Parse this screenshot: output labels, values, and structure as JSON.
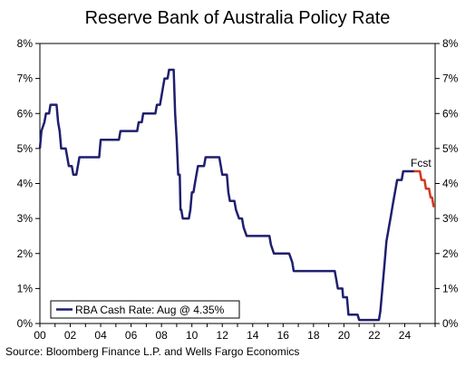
{
  "chart_data": {
    "type": "line",
    "title": "Reserve Bank of Australia Policy Rate",
    "source": "Source: Bloomberg Finance L.P. and Wells Fargo Economics",
    "xlim": [
      2000,
      2026
    ],
    "ylim": [
      0,
      8
    ],
    "x_tick_labels": [
      "00",
      "02",
      "04",
      "06",
      "08",
      "10",
      "12",
      "14",
      "16",
      "18",
      "20",
      "22",
      "24"
    ],
    "x_tick_values": [
      2000,
      2002,
      2004,
      2006,
      2008,
      2010,
      2012,
      2014,
      2016,
      2018,
      2020,
      2022,
      2024
    ],
    "y_tick_labels": [
      "0%",
      "1%",
      "2%",
      "3%",
      "4%",
      "5%",
      "6%",
      "7%",
      "8%"
    ],
    "y_tick_values": [
      0,
      1,
      2,
      3,
      4,
      5,
      6,
      7,
      8
    ],
    "grid": false,
    "legend_placement": "bottom-left",
    "annotation": "Fcst",
    "series": [
      {
        "name": "RBA Cash Rate: Aug @ 4.35%",
        "color": "#1f1f6e",
        "points": [
          [
            2000.0,
            5.0
          ],
          [
            2000.1,
            5.5
          ],
          [
            2000.3,
            5.75
          ],
          [
            2000.4,
            6.0
          ],
          [
            2000.6,
            6.0
          ],
          [
            2000.7,
            6.25
          ],
          [
            2001.1,
            6.25
          ],
          [
            2001.2,
            5.75
          ],
          [
            2001.3,
            5.5
          ],
          [
            2001.4,
            5.0
          ],
          [
            2001.7,
            5.0
          ],
          [
            2001.8,
            4.75
          ],
          [
            2001.9,
            4.5
          ],
          [
            2002.1,
            4.5
          ],
          [
            2002.2,
            4.25
          ],
          [
            2002.4,
            4.25
          ],
          [
            2002.5,
            4.5
          ],
          [
            2002.6,
            4.75
          ],
          [
            2003.9,
            4.75
          ],
          [
            2004.0,
            5.25
          ],
          [
            2005.2,
            5.25
          ],
          [
            2005.3,
            5.5
          ],
          [
            2006.4,
            5.5
          ],
          [
            2006.5,
            5.75
          ],
          [
            2006.7,
            5.75
          ],
          [
            2006.8,
            6.0
          ],
          [
            2007.6,
            6.0
          ],
          [
            2007.7,
            6.25
          ],
          [
            2007.9,
            6.25
          ],
          [
            2008.0,
            6.5
          ],
          [
            2008.1,
            6.75
          ],
          [
            2008.2,
            7.0
          ],
          [
            2008.4,
            7.0
          ],
          [
            2008.5,
            7.25
          ],
          [
            2008.7,
            7.25
          ],
          [
            2008.8,
            7.25
          ],
          [
            2008.9,
            6.0
          ],
          [
            2009.0,
            5.25
          ],
          [
            2009.1,
            4.25
          ],
          [
            2009.2,
            4.25
          ],
          [
            2009.25,
            3.25
          ],
          [
            2009.3,
            3.25
          ],
          [
            2009.4,
            3.0
          ],
          [
            2009.8,
            3.0
          ],
          [
            2009.9,
            3.25
          ],
          [
            2010.0,
            3.75
          ],
          [
            2010.1,
            3.75
          ],
          [
            2010.2,
            4.0
          ],
          [
            2010.3,
            4.25
          ],
          [
            2010.4,
            4.5
          ],
          [
            2010.8,
            4.5
          ],
          [
            2010.9,
            4.75
          ],
          [
            2011.8,
            4.75
          ],
          [
            2011.9,
            4.5
          ],
          [
            2012.0,
            4.25
          ],
          [
            2012.3,
            4.25
          ],
          [
            2012.4,
            3.75
          ],
          [
            2012.5,
            3.5
          ],
          [
            2012.8,
            3.5
          ],
          [
            2012.9,
            3.25
          ],
          [
            2013.1,
            3.0
          ],
          [
            2013.3,
            3.0
          ],
          [
            2013.4,
            2.75
          ],
          [
            2013.6,
            2.5
          ],
          [
            2015.1,
            2.5
          ],
          [
            2015.2,
            2.25
          ],
          [
            2015.4,
            2.0
          ],
          [
            2016.4,
            2.0
          ],
          [
            2016.6,
            1.75
          ],
          [
            2016.7,
            1.5
          ],
          [
            2019.4,
            1.5
          ],
          [
            2019.5,
            1.25
          ],
          [
            2019.6,
            1.0
          ],
          [
            2019.9,
            1.0
          ],
          [
            2019.95,
            0.75
          ],
          [
            2020.2,
            0.75
          ],
          [
            2020.25,
            0.5
          ],
          [
            2020.3,
            0.25
          ],
          [
            2020.9,
            0.25
          ],
          [
            2021.0,
            0.1
          ],
          [
            2022.3,
            0.1
          ],
          [
            2022.4,
            0.35
          ],
          [
            2022.5,
            0.85
          ],
          [
            2022.6,
            1.35
          ],
          [
            2022.7,
            1.85
          ],
          [
            2022.8,
            2.35
          ],
          [
            2022.9,
            2.6
          ],
          [
            2023.0,
            2.85
          ],
          [
            2023.1,
            3.1
          ],
          [
            2023.2,
            3.35
          ],
          [
            2023.3,
            3.6
          ],
          [
            2023.4,
            3.85
          ],
          [
            2023.5,
            4.1
          ],
          [
            2023.8,
            4.1
          ],
          [
            2023.9,
            4.35
          ],
          [
            2024.6,
            4.35
          ]
        ]
      },
      {
        "name": "Forecast",
        "color": "#d2371e",
        "points": [
          [
            2024.6,
            4.35
          ],
          [
            2025.0,
            4.35
          ],
          [
            2025.1,
            4.1
          ],
          [
            2025.3,
            4.1
          ],
          [
            2025.4,
            3.85
          ],
          [
            2025.6,
            3.85
          ],
          [
            2025.7,
            3.6
          ],
          [
            2025.8,
            3.6
          ],
          [
            2025.9,
            3.35
          ],
          [
            2026.0,
            3.35
          ]
        ]
      }
    ]
  }
}
